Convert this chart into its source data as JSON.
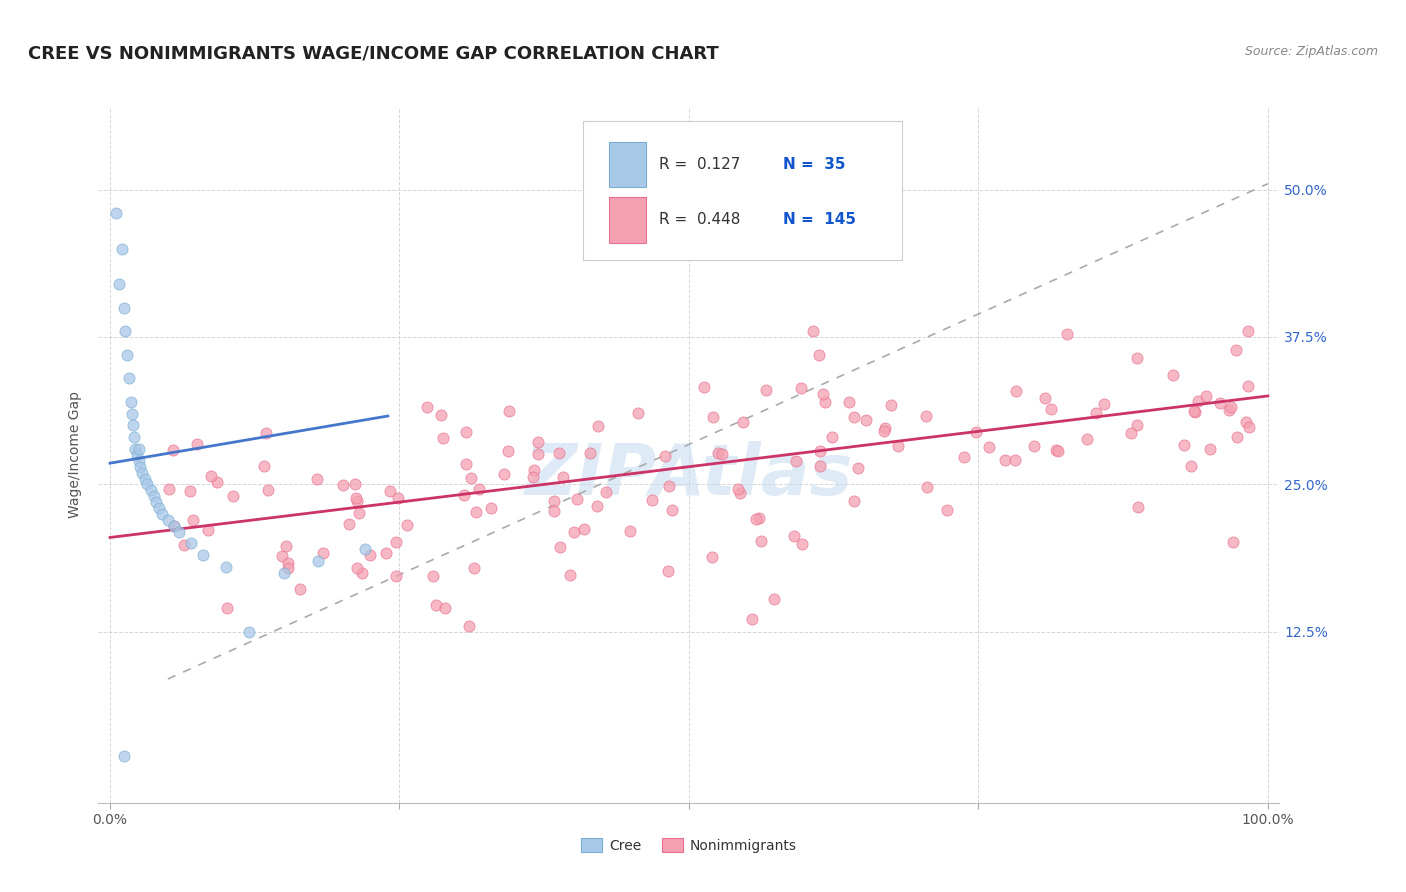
{
  "title": "CREE VS NONIMMIGRANTS WAGE/INCOME GAP CORRELATION CHART",
  "source": "Source: ZipAtlas.com",
  "ylabel": "Wage/Income Gap",
  "xlim": [
    -0.01,
    1.01
  ],
  "ylim": [
    -0.02,
    0.57
  ],
  "xticks": [
    0,
    0.25,
    0.5,
    0.75,
    1.0
  ],
  "xtick_labels": [
    "0.0%",
    "",
    "",
    "",
    "100.0%"
  ],
  "yticks": [
    0.125,
    0.25,
    0.375,
    0.5
  ],
  "ytick_labels": [
    "12.5%",
    "25.0%",
    "37.5%",
    "50.0%"
  ],
  "cree_color": "#A8C8E8",
  "nonimm_color": "#F4A0B0",
  "cree_edge": "#7AAED0",
  "nonimm_edge": "#E87090",
  "cree_R": 0.127,
  "cree_N": 35,
  "nonimm_R": 0.448,
  "nonimm_N": 145,
  "legend_blue": "#1155CC",
  "grid_color": "#CCCCCC",
  "bg_color": "#FFFFFF",
  "title_fontsize": 13,
  "axis_label_fontsize": 10,
  "tick_fontsize": 10,
  "marker_size": 8,
  "marker_alpha": 0.75,
  "cree_line_x": [
    0.0,
    0.24
  ],
  "cree_line_y": [
    0.268,
    0.308
  ],
  "nonimm_line_x": [
    0.0,
    1.0
  ],
  "nonimm_line_y": [
    0.205,
    0.325
  ],
  "gray_line_x": [
    0.05,
    1.0
  ],
  "gray_line_y": [
    0.085,
    0.505
  ]
}
